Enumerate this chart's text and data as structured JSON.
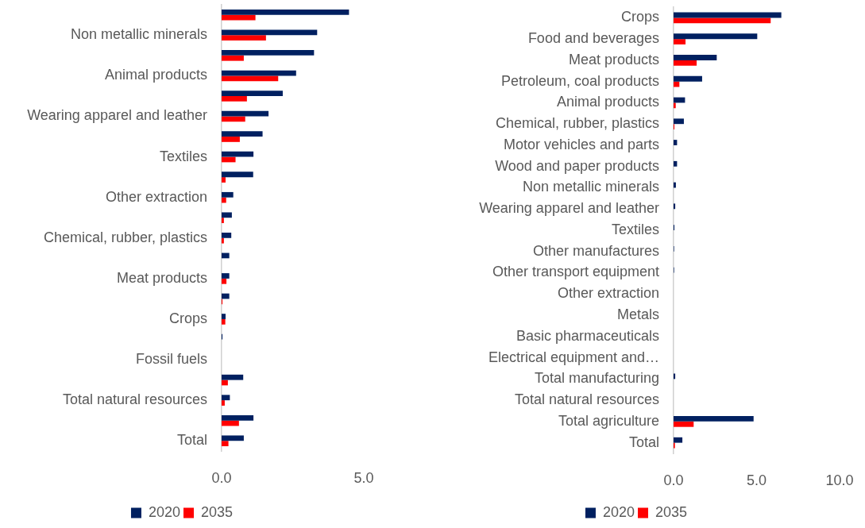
{
  "chart_data": [
    {
      "type": "bar",
      "orientation": "horizontal",
      "categories": [
        null,
        "Non metallic minerals",
        null,
        "Animal products",
        null,
        "Wearing apparel and leather",
        null,
        "Textiles",
        null,
        "Other extraction",
        null,
        "Chemical, rubber, plastics",
        null,
        "Meat products",
        null,
        "Crops",
        null,
        "Fossil fuels",
        null,
        "Total natural resources",
        null,
        "Total"
      ],
      "series": [
        {
          "name": "2020",
          "color": "#002060",
          "values": [
            4.48,
            3.36,
            3.25,
            2.62,
            2.15,
            1.65,
            1.44,
            1.12,
            1.11,
            0.41,
            0.36,
            0.34,
            0.27,
            0.27,
            0.27,
            0.14,
            0.03,
            0,
            0.76,
            0.29,
            1.12,
            0.78
          ]
        },
        {
          "name": "2035",
          "color": "#ff0000",
          "values": [
            1.19,
            1.56,
            0.78,
            1.99,
            0.89,
            0.83,
            0.64,
            0.49,
            0.14,
            0.16,
            0.08,
            0.08,
            0,
            0.17,
            0.03,
            0.13,
            0,
            0,
            0.22,
            0.11,
            0.61,
            0.24
          ]
        }
      ],
      "xlim": [
        0,
        5
      ],
      "xticks": [
        {
          "value": 0,
          "label": "0.0"
        },
        {
          "value": 5,
          "label": "5.0"
        }
      ],
      "legend": "bottom"
    },
    {
      "type": "bar",
      "orientation": "horizontal",
      "categories": [
        "Crops",
        "Food and beverages",
        "Meat products",
        "Petroleum, coal products",
        "Animal products",
        "Chemical, rubber, plastics",
        "Motor vehicles and parts",
        "Wood and paper products",
        "Non metallic minerals",
        "Wearing apparel and leather",
        "Textiles",
        "Other manufactures",
        "Other transport equipment",
        "Other extraction",
        "Metals",
        "Basic pharmaceuticals",
        "Electrical equipment and…",
        "Total manufacturing",
        "Total natural resources",
        "Total agriculture",
        "Total"
      ],
      "series": [
        {
          "name": "2020",
          "color": "#002060",
          "values": [
            6.49,
            5.04,
            2.6,
            1.72,
            0.69,
            0.62,
            0.21,
            0.21,
            0.14,
            0.1,
            0.05,
            0.03,
            0.03,
            0,
            0,
            0,
            0,
            0.1,
            0,
            4.82,
            0.53
          ]
        },
        {
          "name": "2035",
          "color": "#ff0000",
          "values": [
            5.85,
            0.72,
            1.39,
            0.35,
            0.13,
            0.05,
            0,
            0,
            0,
            0,
            0,
            0,
            0,
            0,
            0,
            0,
            0,
            0,
            0,
            1.21,
            0.08
          ]
        }
      ],
      "xlim": [
        0,
        10
      ],
      "xticks": [
        {
          "value": 0,
          "label": "0.0"
        },
        {
          "value": 5,
          "label": "5.0"
        },
        {
          "value": 10,
          "label": "10.0"
        }
      ],
      "legend": "bottom"
    }
  ]
}
